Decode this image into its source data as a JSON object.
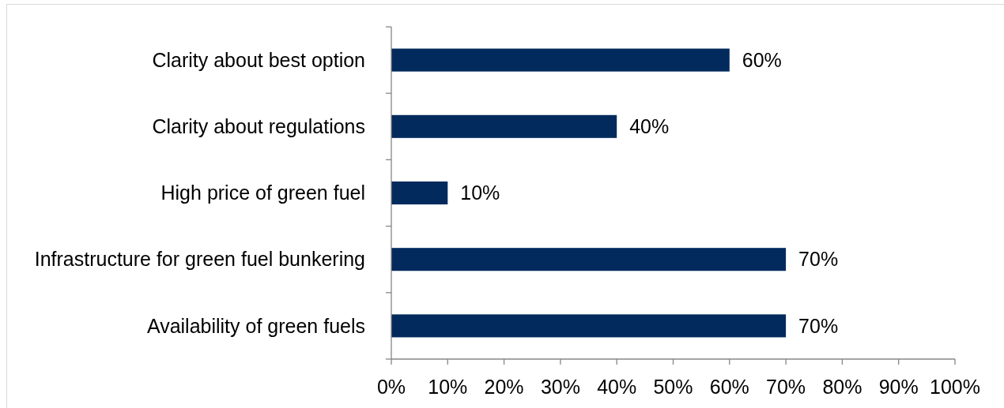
{
  "chart_data": {
    "type": "bar",
    "orientation": "horizontal",
    "categories": [
      "Clarity about best option",
      "Clarity about regulations",
      "High price of green fuel",
      "Infrastructure for green fuel bunkering",
      "Availability of green fuels"
    ],
    "values": [
      60,
      40,
      10,
      70,
      70
    ],
    "color": "#022a5c",
    "value_labels": [
      "60%",
      "40%",
      "10%",
      "70%",
      "70%"
    ],
    "xlim": [
      0,
      100
    ],
    "xticks": [
      {
        "value": 0,
        "label": "0%"
      },
      {
        "value": 10,
        "label": "10%"
      },
      {
        "value": 20,
        "label": "20%"
      },
      {
        "value": 30,
        "label": "30%"
      },
      {
        "value": 40,
        "label": "40%"
      },
      {
        "value": 50,
        "label": "50%"
      },
      {
        "value": 60,
        "label": "60%"
      },
      {
        "value": 70,
        "label": "70%"
      },
      {
        "value": 80,
        "label": "80%"
      },
      {
        "value": 90,
        "label": "90%"
      },
      {
        "value": 100,
        "label": "100%"
      }
    ]
  }
}
